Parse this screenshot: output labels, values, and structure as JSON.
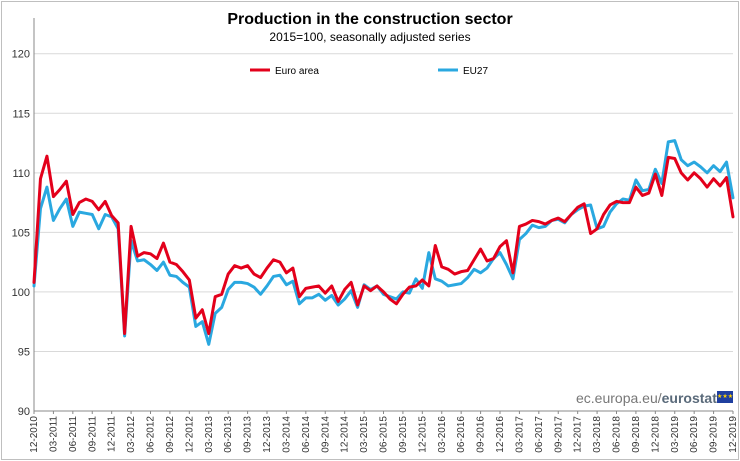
{
  "chart_data": {
    "type": "line",
    "title": "Production in the construction sector",
    "subtitle": "2015=100, seasonally adjusted series",
    "ylim": [
      90,
      123
    ],
    "yticks": [
      90,
      95,
      100,
      105,
      110,
      115,
      120
    ],
    "grid": true,
    "legend_position": "top",
    "xtick_labels": [
      "12-2010",
      "03-2011",
      "06-2011",
      "09-2011",
      "12-2011",
      "03-2012",
      "06-2012",
      "09-2012",
      "12-2012",
      "03-2013",
      "06-2013",
      "09-2013",
      "12-2013",
      "03-2014",
      "06-2014",
      "09-2014",
      "12-2014",
      "03-2015",
      "06-2015",
      "09-2015",
      "12-2015",
      "03-2016",
      "06-2016",
      "09-2016",
      "12-2016",
      "03-2017",
      "06-2017",
      "09-2017",
      "12-2017",
      "03-2018",
      "06-2018",
      "09-2018",
      "12-2018",
      "03-2019",
      "06-2019",
      "09-2019",
      "12-2019"
    ],
    "series": [
      {
        "name": "Euro area",
        "color": "#e3001b",
        "values": [
          100.8,
          109.5,
          111.4,
          108.0,
          108.6,
          109.3,
          106.5,
          107.5,
          107.8,
          107.6,
          106.9,
          107.6,
          106.4,
          105.8,
          96.5,
          105.5,
          103.0,
          103.3,
          103.2,
          102.8,
          104.1,
          102.5,
          102.3,
          101.7,
          101.0,
          97.8,
          98.5,
          96.5,
          99.6,
          99.8,
          101.5,
          102.2,
          102.0,
          102.2,
          101.5,
          101.2,
          102.0,
          102.7,
          102.5,
          101.6,
          102.0,
          99.6,
          100.3,
          100.4,
          100.5,
          99.9,
          100.5,
          99.2,
          100.2,
          100.8,
          98.9,
          100.5,
          100.1,
          100.5,
          100.0,
          99.4,
          99.0,
          99.8,
          100.4,
          100.5,
          101.0,
          100.5,
          103.9,
          102.1,
          101.9,
          101.5,
          101.7,
          101.8,
          102.7,
          103.6,
          102.6,
          102.8,
          103.8,
          104.3,
          101.6,
          105.5,
          105.7,
          106.0,
          105.9,
          105.7,
          106.0,
          106.2,
          105.9,
          106.5,
          107.1,
          107.4,
          104.9,
          105.3,
          106.5,
          107.3,
          107.6,
          107.5,
          107.5,
          108.8,
          108.1,
          108.3,
          109.9,
          108.1,
          111.3,
          111.2,
          110.0,
          109.4,
          110.0,
          109.5,
          108.8,
          109.5,
          108.9,
          109.6,
          106.3
        ]
      },
      {
        "name": "EU27",
        "color": "#2aa8e0",
        "values": [
          100.5,
          107.0,
          108.8,
          106.0,
          107.0,
          107.8,
          105.5,
          106.7,
          106.6,
          106.5,
          105.3,
          106.5,
          106.3,
          105.3,
          96.3,
          104.3,
          102.6,
          102.7,
          102.3,
          101.8,
          102.5,
          101.4,
          101.3,
          100.8,
          100.4,
          97.1,
          97.5,
          95.6,
          98.2,
          98.7,
          100.2,
          100.8,
          100.8,
          100.7,
          100.4,
          99.8,
          100.5,
          101.3,
          101.4,
          100.6,
          100.9,
          99.0,
          99.5,
          99.5,
          99.8,
          99.3,
          99.7,
          98.9,
          99.4,
          100.1,
          98.7,
          100.6,
          100.2,
          100.5,
          99.8,
          99.6,
          99.4,
          100.0,
          99.9,
          101.1,
          100.3,
          103.3,
          101.1,
          100.9,
          100.5,
          100.6,
          100.7,
          101.2,
          101.9,
          101.6,
          102.0,
          102.8,
          103.3,
          102.3,
          101.1,
          104.4,
          104.9,
          105.6,
          105.4,
          105.5,
          106.0,
          106.1,
          105.8,
          106.5,
          106.9,
          107.2,
          107.3,
          105.3,
          105.5,
          106.7,
          107.4,
          107.8,
          107.7,
          109.4,
          108.5,
          108.6,
          110.3,
          109.1,
          112.6,
          112.7,
          111.1,
          110.6,
          110.9,
          110.5,
          110.0,
          110.6,
          110.1,
          110.9,
          107.9
        ]
      }
    ]
  },
  "brand": {
    "prefix": "ec.europa.eu/",
    "name": "eurostat",
    "flag_stars": "★★★"
  }
}
